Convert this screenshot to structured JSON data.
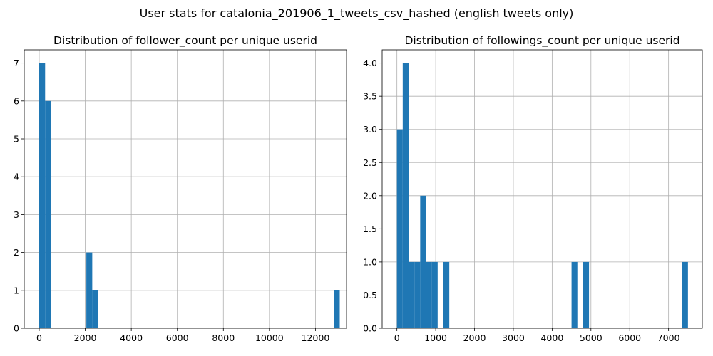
{
  "suptitle": "User stats for catalonia_201906_1_tweets_csv_hashed (english tweets only)",
  "chart_data": [
    {
      "type": "bar",
      "title": "Distribution of follower_count per unique userid",
      "xlabel": "",
      "ylabel": "",
      "xlim": [
        -650,
        13350
      ],
      "ylim": [
        0,
        7.35
      ],
      "grid": true,
      "bar_color": "#1f77b4",
      "xticks": [
        0,
        2000,
        4000,
        6000,
        8000,
        10000,
        12000
      ],
      "yticks": [
        0,
        1,
        2,
        3,
        4,
        5,
        6,
        7
      ],
      "bins": [
        {
          "x0": 0,
          "x1": 256,
          "count": 7
        },
        {
          "x0": 256,
          "x1": 512,
          "count": 6
        },
        {
          "x0": 2048,
          "x1": 2304,
          "count": 2
        },
        {
          "x0": 2304,
          "x1": 2560,
          "count": 1
        },
        {
          "x0": 12800,
          "x1": 13056,
          "count": 1
        }
      ]
    },
    {
      "type": "bar",
      "title": "Distribution of followings_count per unique userid",
      "xlabel": "",
      "ylabel": "",
      "xlim": [
        -380,
        7870
      ],
      "ylim": [
        0,
        4.2
      ],
      "grid": true,
      "bar_color": "#1f77b4",
      "xticks": [
        0,
        1000,
        2000,
        3000,
        4000,
        5000,
        6000,
        7000
      ],
      "yticks": [
        0.0,
        0.5,
        1.0,
        1.5,
        2.0,
        2.5,
        3.0,
        3.5,
        4.0
      ],
      "bins": [
        {
          "x0": 0,
          "x1": 150,
          "count": 3
        },
        {
          "x0": 150,
          "x1": 300,
          "count": 4
        },
        {
          "x0": 300,
          "x1": 450,
          "count": 1
        },
        {
          "x0": 450,
          "x1": 600,
          "count": 1
        },
        {
          "x0": 600,
          "x1": 750,
          "count": 2
        },
        {
          "x0": 750,
          "x1": 900,
          "count": 1
        },
        {
          "x0": 900,
          "x1": 1050,
          "count": 1
        },
        {
          "x0": 1200,
          "x1": 1350,
          "count": 1
        },
        {
          "x0": 4500,
          "x1": 4650,
          "count": 1
        },
        {
          "x0": 4800,
          "x1": 4950,
          "count": 1
        },
        {
          "x0": 7350,
          "x1": 7500,
          "count": 1
        }
      ]
    }
  ]
}
